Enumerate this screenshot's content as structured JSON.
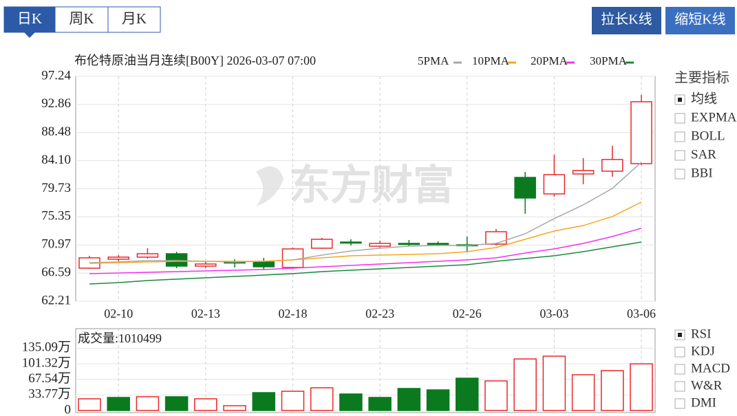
{
  "tabs": [
    {
      "label": "日K",
      "selected": true
    },
    {
      "label": "周K",
      "selected": false
    },
    {
      "label": "月K",
      "selected": false
    }
  ],
  "buttons": [
    "拉长K线",
    "缩短K线"
  ],
  "watermark": "东方财富",
  "chart_data": [
    {
      "type": "candlestick",
      "title": "布伦特原油当月连续[B00Y] 2026-03-07 07:00",
      "categories": [
        null,
        "02-10",
        null,
        null,
        "02-13",
        null,
        null,
        "02-18",
        null,
        null,
        "02-23",
        null,
        null,
        "02-26",
        null,
        null,
        "03-03",
        null,
        null,
        "03-06"
      ],
      "open": [
        67.35,
        68.75,
        69.07,
        69.6,
        67.67,
        68.32,
        68.32,
        67.46,
        70.46,
        71.42,
        70.78,
        71.21,
        71.21,
        71.0,
        71.1,
        81.49,
        78.92,
        82.03,
        82.46,
        83.64
      ],
      "high": [
        69.28,
        69.39,
        70.46,
        69.92,
        68.42,
        68.75,
        68.96,
        70.57,
        72.07,
        71.85,
        71.64,
        71.74,
        71.53,
        72.28,
        73.46,
        82.35,
        85.03,
        84.49,
        86.42,
        94.35
      ],
      "low": [
        67.24,
        68.42,
        68.85,
        67.35,
        67.35,
        67.46,
        67.14,
        67.24,
        70.35,
        70.89,
        70.57,
        70.78,
        70.78,
        69.82,
        70.89,
        75.82,
        78.49,
        80.42,
        81.6,
        83.42
      ],
      "close": [
        68.96,
        69.07,
        69.6,
        67.67,
        68.0,
        68.21,
        67.57,
        70.35,
        71.85,
        71.32,
        71.21,
        71.1,
        71.1,
        70.89,
        73.03,
        78.28,
        81.92,
        82.56,
        84.28,
        93.28
      ],
      "up_color": "#e8272a",
      "down_color": "#0b7a1f",
      "series": [
        {
          "name": "5PMA",
          "color": "#a8a8a8",
          "values": [
            68.21,
            68.32,
            68.53,
            68.53,
            68.42,
            68.32,
            68.42,
            68.64,
            69.39,
            70.03,
            70.46,
            70.78,
            70.89,
            70.89,
            71.21,
            72.71,
            75.07,
            77.21,
            79.78,
            83.85
          ]
        },
        {
          "name": "10PMA",
          "color": "#f5a623",
          "values": [
            68.1,
            68.21,
            68.32,
            68.42,
            68.42,
            68.42,
            68.42,
            68.64,
            68.96,
            69.28,
            69.39,
            69.49,
            69.6,
            69.92,
            70.57,
            71.85,
            73.14,
            73.99,
            75.39,
            77.64
          ]
        },
        {
          "name": "20PMA",
          "color": "#f030f0",
          "values": [
            66.5,
            66.6,
            66.71,
            66.82,
            66.92,
            67.03,
            67.14,
            67.35,
            67.57,
            67.78,
            68.0,
            68.21,
            68.42,
            68.64,
            68.96,
            69.71,
            70.35,
            71.21,
            72.28,
            73.57
          ]
        },
        {
          "name": "30PMA",
          "color": "#1a8a3a",
          "values": [
            64.89,
            65.1,
            65.42,
            65.64,
            65.85,
            66.07,
            66.28,
            66.5,
            66.82,
            67.03,
            67.25,
            67.46,
            67.67,
            67.89,
            68.42,
            68.85,
            69.28,
            69.92,
            70.67,
            71.42
          ]
        }
      ],
      "ylim": [
        62.21,
        97.24
      ],
      "yticks": [
        97.24,
        92.86,
        88.48,
        {
          "value": 84.1,
          "label": "84.10"
        },
        79.73,
        75.35,
        70.97,
        66.59,
        62.21
      ],
      "grid": true
    },
    {
      "type": "bar",
      "title": "成交量:1010499",
      "values": [
        25.3,
        28.3,
        29.8,
        29.8,
        25.3,
        10.4,
        38.7,
        41.7,
        49.2,
        35.8,
        28.3,
        47.7,
        44.7,
        70.0,
        64.1,
        111.7,
        117.7,
        77.5,
        86.4,
        101.05
      ],
      "colors": [
        "#e8272a",
        "#0b7a1f",
        "#e8272a",
        "#0b7a1f",
        "#e8272a",
        "#e8272a",
        "#0b7a1f",
        "#e8272a",
        "#e8272a",
        "#0b7a1f",
        "#0b7a1f",
        "#0b7a1f",
        "#0b7a1f",
        "#0b7a1f",
        "#e8272a",
        "#e8272a",
        "#e8272a",
        "#e8272a",
        "#e8272a",
        "#e8272a"
      ],
      "ylim": [
        0,
        177.3
      ],
      "yticks": [
        {
          "value": 135.09,
          "label": "135.09万"
        },
        {
          "value": 101.32,
          "label": "101.32万"
        },
        {
          "value": 67.54,
          "label": "67.54万"
        },
        {
          "value": 33.77,
          "label": "33.77万"
        },
        0
      ],
      "grid": true
    }
  ],
  "indicators": {
    "main": {
      "title": "主要指标",
      "items": [
        {
          "label": "均线",
          "checked": true
        },
        {
          "label": "EXPMA",
          "checked": false
        },
        {
          "label": "BOLL",
          "checked": false
        },
        {
          "label": "SAR",
          "checked": false
        },
        {
          "label": "BBI",
          "checked": false
        }
      ]
    },
    "sub": {
      "items": [
        {
          "label": "RSI",
          "checked": true
        },
        {
          "label": "KDJ",
          "checked": false
        },
        {
          "label": "MACD",
          "checked": false
        },
        {
          "label": "W&R",
          "checked": false
        },
        {
          "label": "DMI",
          "checked": false
        }
      ]
    }
  }
}
